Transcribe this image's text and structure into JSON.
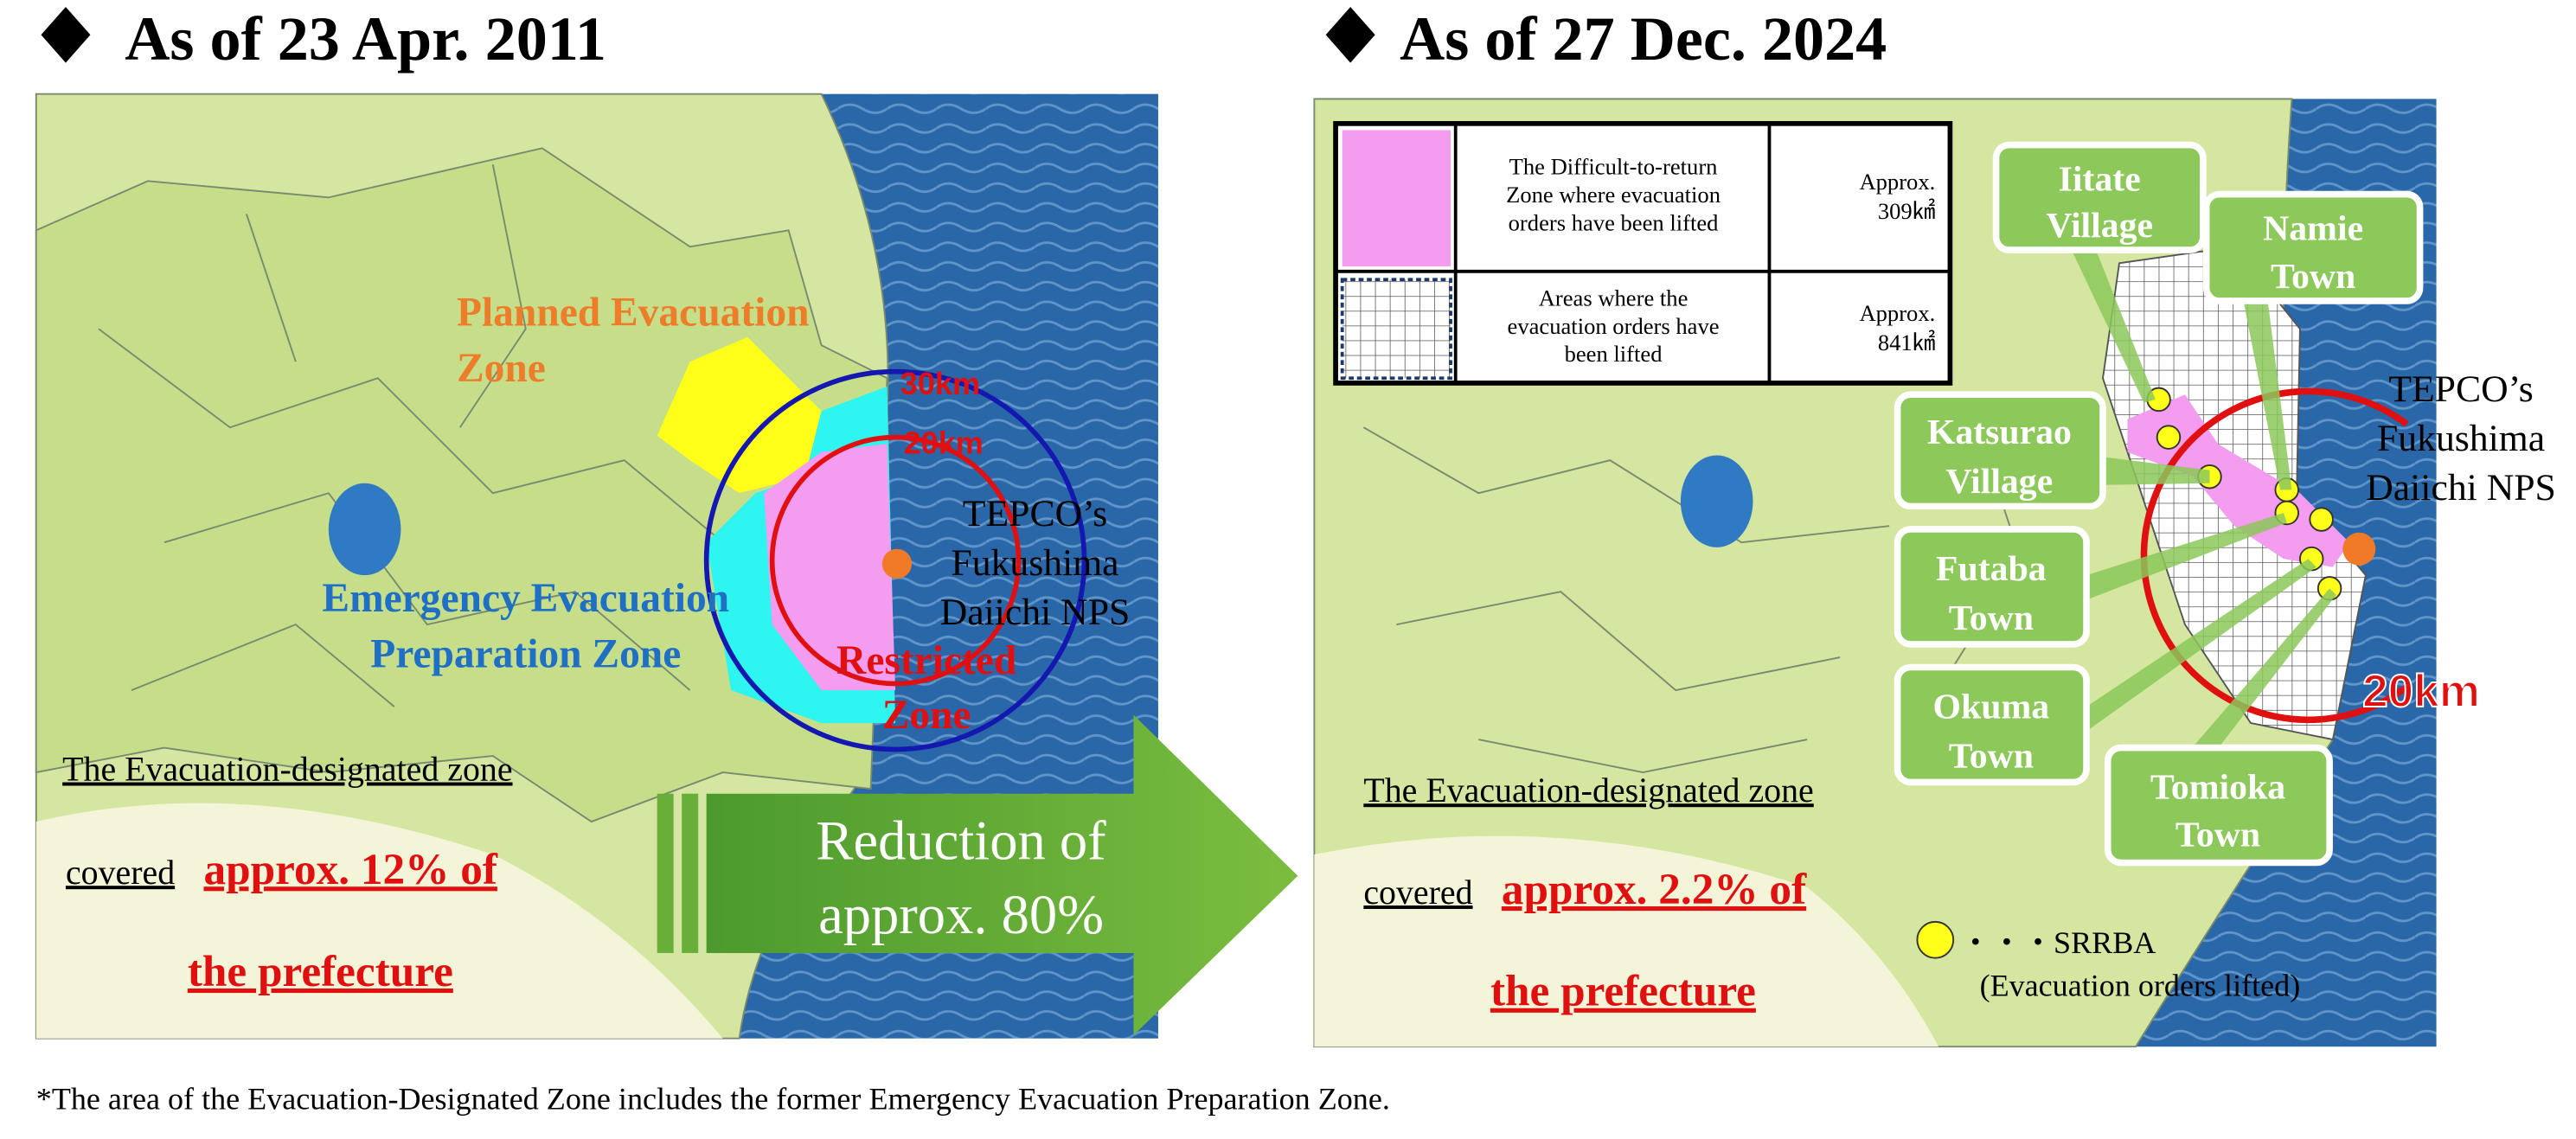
{
  "left": {
    "title": "As of 23 Apr. 2011",
    "planned_zone": [
      "Planned Evacuation",
      "Zone"
    ],
    "emergency_zone": [
      "Emergency Evacuation",
      "Preparation Zone"
    ],
    "restricted_zone": [
      "Restricted",
      "Zone"
    ],
    "ring_30": "30km",
    "ring_20": "20km",
    "nps": [
      "TEPCO’s",
      "Fukushima",
      "Daiichi NPS"
    ],
    "summary": {
      "line1": "The Evacuation-designated zone",
      "covered": "covered",
      "share": "approx. 12% of",
      "tail": "the prefecture"
    }
  },
  "arrow": [
    "Reduction of",
    "approx. 80%"
  ],
  "right": {
    "title": "As of 27 Dec. 2024",
    "legend": [
      {
        "text": [
          "The Difficult-to-return",
          "Zone where evacuation",
          "orders have been lifted"
        ],
        "area": [
          "Approx.",
          "309㎢"
        ]
      },
      {
        "text": [
          "Areas where the",
          "evacuation orders have",
          "been lifted"
        ],
        "area": [
          "Approx.",
          "841㎢"
        ]
      }
    ],
    "towns": [
      [
        "Iitate",
        "Village"
      ],
      [
        "Namie",
        "Town"
      ],
      [
        "Katsurao",
        "Village"
      ],
      [
        "Futaba",
        "Town"
      ],
      [
        "Okuma",
        "Town"
      ],
      [
        "Tomioka",
        "Town"
      ]
    ],
    "nps": [
      "TEPCO’s",
      "Fukushima",
      "Daiichi NPS"
    ],
    "ring_20": "20km",
    "summary": {
      "line1": "The Evacuation-designated zone",
      "covered": "covered",
      "share": "approx. 2.2% of",
      "tail": "the prefecture"
    },
    "srrba": [
      "・・・SRRBA",
      "(Evacuation orders lifted)"
    ]
  },
  "footnote": "*The area of the Evacuation-Designated Zone includes the former Emergency Evacuation Preparation Zone."
}
